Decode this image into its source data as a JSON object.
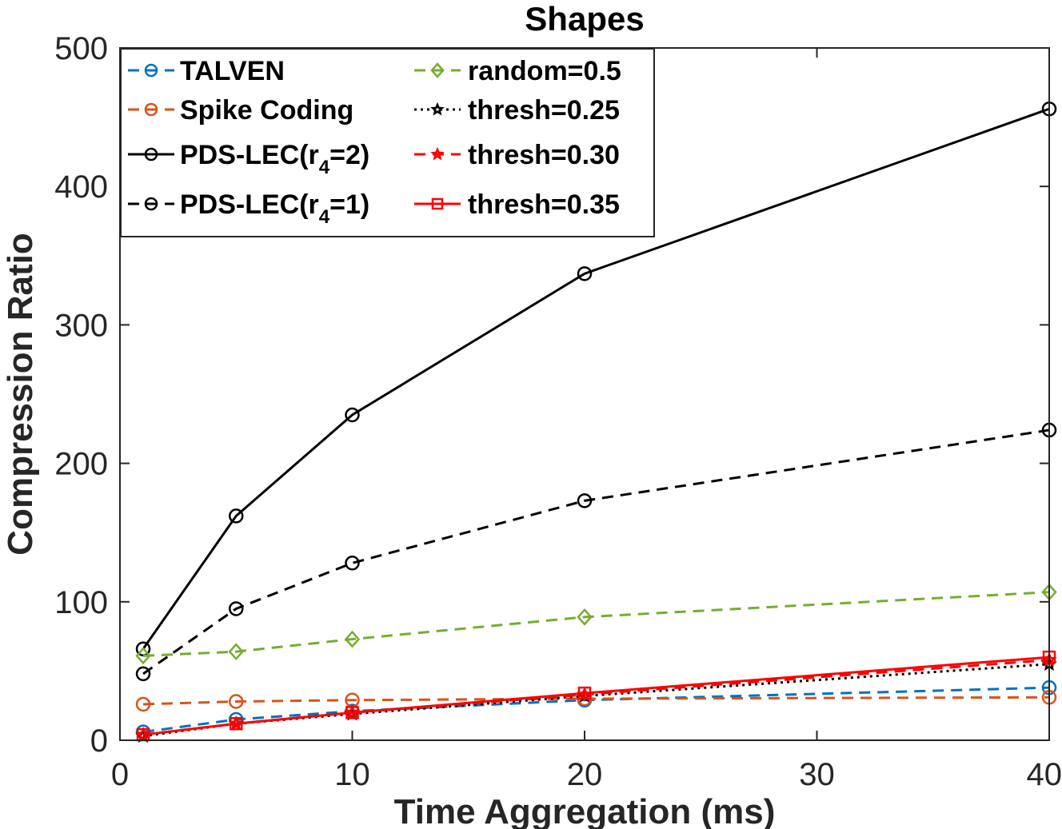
{
  "chart_data": {
    "type": "line",
    "title": "Shapes",
    "xlabel": "Time Aggregation (ms)",
    "ylabel": "Compression Ratio",
    "xlim": [
      0,
      40
    ],
    "ylim": [
      0,
      500
    ],
    "xticks": [
      0,
      10,
      20,
      30,
      40
    ],
    "yticks": [
      0,
      100,
      200,
      300,
      400,
      500
    ],
    "x": [
      1,
      5,
      10,
      20,
      40
    ],
    "legend_position": "top-left",
    "series": [
      {
        "name": "TALVEN",
        "values": [
          6,
          15,
          21,
          29,
          38
        ],
        "color": "#0072BD",
        "dash": "dashed",
        "marker": "circle"
      },
      {
        "name": "Spike Coding",
        "values": [
          26,
          28,
          29,
          30,
          31
        ],
        "color": "#D95319",
        "dash": "dashed",
        "marker": "circle"
      },
      {
        "name": "PDS-LEC(r4=2)",
        "label_main": "PDS-LEC(r",
        "label_sub": "4",
        "label_tail": "=2)",
        "values": [
          66,
          162,
          235,
          337,
          456
        ],
        "color": "#000000",
        "dash": "solid",
        "marker": "circle"
      },
      {
        "name": "PDS-LEC(r4=1)",
        "label_main": "PDS-LEC(r",
        "label_sub": "4",
        "label_tail": "=1)",
        "values": [
          48,
          95,
          128,
          173,
          224
        ],
        "color": "#000000",
        "dash": "dashed",
        "marker": "circle"
      },
      {
        "name": "random=0.5",
        "values": [
          61,
          64,
          73,
          89,
          107
        ],
        "color": "#77AC30",
        "dash": "dashed",
        "marker": "diamond"
      },
      {
        "name": "thresh=0.25",
        "values": [
          3,
          12,
          19,
          32,
          55
        ],
        "color": "#000000",
        "dash": "dotted",
        "marker": "star"
      },
      {
        "name": "thresh=0.30",
        "values": [
          4,
          12,
          20,
          33,
          58
        ],
        "color": "#FF0000",
        "dash": "dashed",
        "marker": "star"
      },
      {
        "name": "thresh=0.35",
        "values": [
          4,
          12,
          20,
          34,
          60
        ],
        "color": "#FF0000",
        "dash": "solid",
        "marker": "square"
      }
    ]
  }
}
